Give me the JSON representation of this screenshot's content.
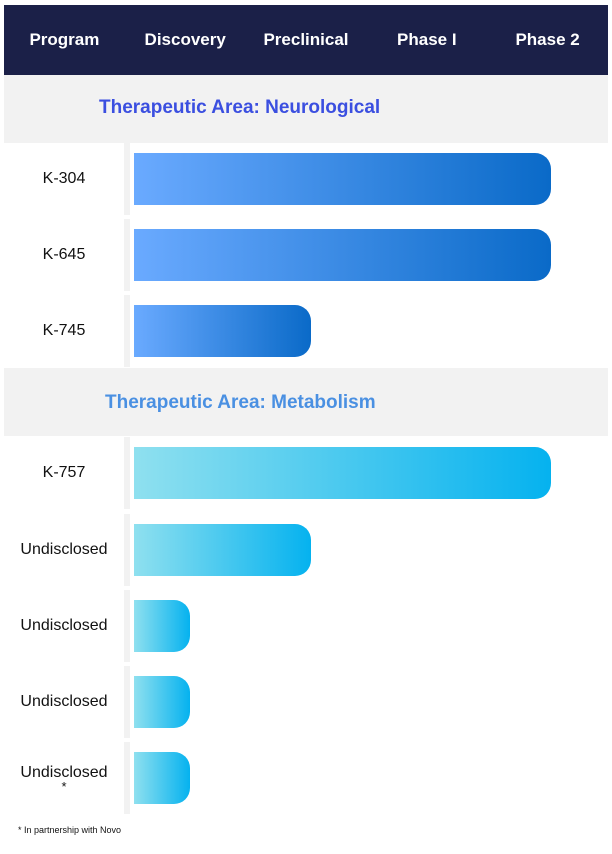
{
  "header": {
    "columns": [
      "Program",
      "Discovery",
      "Preclinical",
      "Phase I",
      "Phase 2"
    ]
  },
  "colors": {
    "header_bg": "#1b2048",
    "neuro_title": "#3b4fe0",
    "metab_title": "#4a90e2",
    "neuro_bar_start": "#6aaaff",
    "neuro_bar_end": "#0a6ac8",
    "metab_bar_start": "#8fe0ef",
    "metab_bar_end": "#05b2ef"
  },
  "chart_data": {
    "type": "bar",
    "orientation": "horizontal",
    "stages": [
      "Discovery",
      "Preclinical",
      "Phase I",
      "Phase 2"
    ],
    "areas": [
      {
        "title": "Therapeutic Area: Neurological",
        "programs": [
          {
            "label": "K-304",
            "progress_stage": 3.5
          },
          {
            "label": "K-645",
            "progress_stage": 3.5
          },
          {
            "label": "K-745",
            "progress_stage": 1.5
          }
        ]
      },
      {
        "title": "Therapeutic Area: Metabolism",
        "programs": [
          {
            "label": "K-757",
            "progress_stage": 3.5
          },
          {
            "label": "Undisclosed",
            "progress_stage": 1.5
          },
          {
            "label": "Undisclosed",
            "progress_stage": 0.5
          },
          {
            "label": "Undisclosed",
            "progress_stage": 0.5
          },
          {
            "label": "Undisclosed",
            "note_mark": "*",
            "progress_stage": 0.5
          }
        ]
      }
    ]
  },
  "footnote": "* In partnership with Novo"
}
